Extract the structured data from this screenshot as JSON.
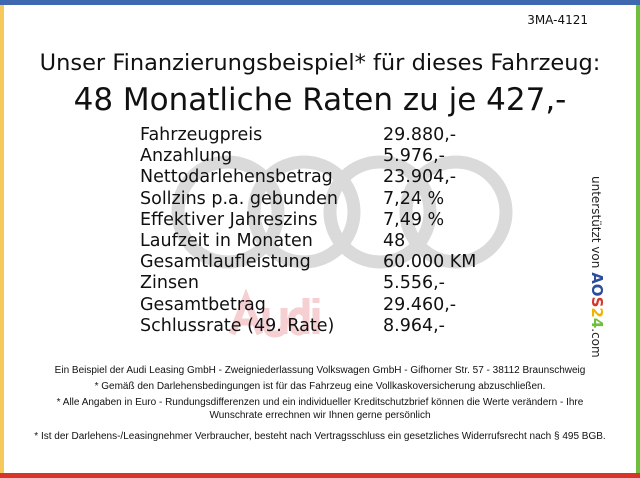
{
  "code": "3MA-4121",
  "title_line1": "Unser Finanzierungsbeispiel* für dieses Fahrzeug:",
  "title_line2": "48 Monatliche Raten zu je 427,-",
  "watermark_text": "Audi",
  "rows": [
    {
      "label": "Fahrzeugpreis",
      "value": "29.880,-"
    },
    {
      "label": "Anzahlung",
      "value": "5.976,-"
    },
    {
      "label": "Nettodarlehensbetrag",
      "value": "23.904,-"
    },
    {
      "label": "Sollzins p.a. gebunden",
      "value": "7,24 %"
    },
    {
      "label": "Effektiver Jahreszins",
      "value": "7,49 %"
    },
    {
      "label": "Laufzeit in Monaten",
      "value": "48"
    },
    {
      "label": "Gesamtlaufleistung",
      "value": "60.000 KM"
    },
    {
      "label": "Zinsen",
      "value": "5.556,-"
    },
    {
      "label": "Gesamtbetrag",
      "value": "29.460,-"
    },
    {
      "label": "Schlussrate (49. Rate)",
      "value": "8.964,-"
    }
  ],
  "side": {
    "prefix": "unterstützt von ",
    "logo": [
      "A",
      "O",
      "S",
      "2",
      "4"
    ],
    "suffix": ".com"
  },
  "footer": [
    "Ein Beispiel der Audi Leasing GmbH - Zweigniederlassung Volkswagen GmbH - Gifhorner Str. 57 - 38112 Braunschweig",
    "* Gemäß den Darlehensbedingungen ist für das Fahrzeug eine Vollkaskoversicherung abzuschließen.",
    "* Alle Angaben in Euro - Rundungsdifferenzen und ein individueller Kreditschutzbrief können die Werte verändern - Ihre Wunschrate errechnen wir Ihnen gerne persönlich",
    "* Ist der Darlehens-/Leasingnehmer Verbraucher, besteht nach Vertragsschluss ein gesetzliches Widerrufsrecht nach § 495 BGB."
  ],
  "colors": {
    "top": "#3e68b0",
    "left": "#f7c85a",
    "right": "#6fbf3f",
    "bottom": "#d8342a",
    "logo": [
      "#2b4d9c",
      "#2b4d9c",
      "#d8342a",
      "#f0b400",
      "#6fbf3f"
    ]
  }
}
